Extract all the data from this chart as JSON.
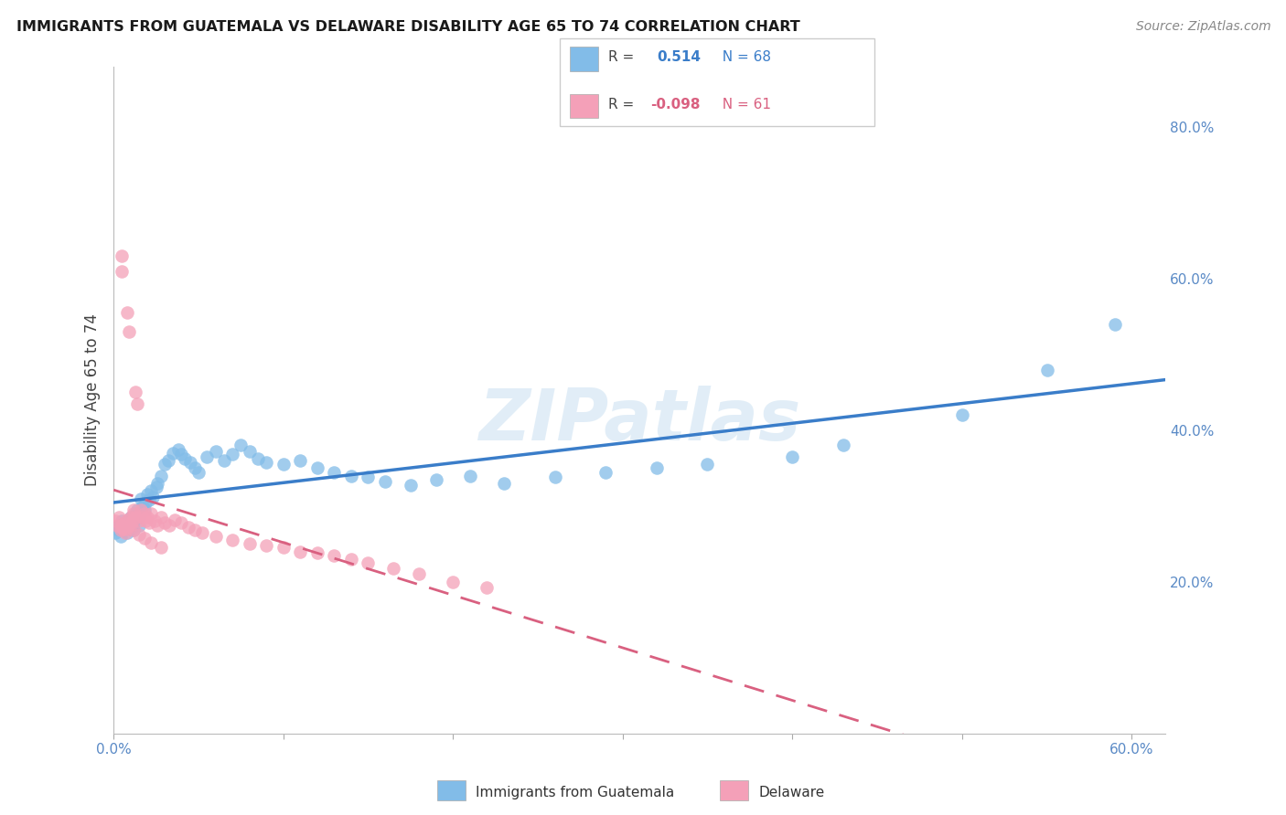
{
  "title": "IMMIGRANTS FROM GUATEMALA VS DELAWARE DISABILITY AGE 65 TO 74 CORRELATION CHART",
  "source": "Source: ZipAtlas.com",
  "ylabel": "Disability Age 65 to 74",
  "xlim": [
    0.0,
    0.62
  ],
  "ylim": [
    0.0,
    0.88
  ],
  "x_ticks": [
    0.0,
    0.1,
    0.2,
    0.3,
    0.4,
    0.5,
    0.6
  ],
  "y_ticks_right": [
    0.2,
    0.4,
    0.6,
    0.8
  ],
  "y_tick_labels_right": [
    "20.0%",
    "40.0%",
    "60.0%",
    "80.0%"
  ],
  "blue_color": "#82bce8",
  "pink_color": "#f4a0b8",
  "blue_line_color": "#3a7dc9",
  "pink_line_color": "#d96080",
  "watermark": "ZIPatlas",
  "background_color": "#ffffff",
  "grid_color": "#e0e0e0",
  "blue_scatter_x": [
    0.001,
    0.002,
    0.003,
    0.004,
    0.005,
    0.005,
    0.006,
    0.007,
    0.008,
    0.008,
    0.009,
    0.01,
    0.01,
    0.011,
    0.012,
    0.012,
    0.013,
    0.014,
    0.015,
    0.015,
    0.016,
    0.017,
    0.018,
    0.019,
    0.02,
    0.021,
    0.022,
    0.023,
    0.025,
    0.026,
    0.028,
    0.03,
    0.032,
    0.035,
    0.038,
    0.04,
    0.042,
    0.045,
    0.048,
    0.05,
    0.055,
    0.06,
    0.065,
    0.07,
    0.075,
    0.08,
    0.085,
    0.09,
    0.1,
    0.11,
    0.12,
    0.13,
    0.14,
    0.15,
    0.16,
    0.175,
    0.19,
    0.21,
    0.23,
    0.26,
    0.29,
    0.32,
    0.35,
    0.4,
    0.43,
    0.5,
    0.55,
    0.59
  ],
  "blue_scatter_y": [
    0.265,
    0.27,
    0.275,
    0.26,
    0.272,
    0.28,
    0.268,
    0.275,
    0.265,
    0.278,
    0.282,
    0.27,
    0.285,
    0.275,
    0.268,
    0.28,
    0.29,
    0.295,
    0.285,
    0.275,
    0.31,
    0.3,
    0.295,
    0.305,
    0.315,
    0.308,
    0.32,
    0.312,
    0.325,
    0.33,
    0.34,
    0.355,
    0.36,
    0.37,
    0.375,
    0.368,
    0.362,
    0.358,
    0.35,
    0.345,
    0.365,
    0.372,
    0.36,
    0.368,
    0.38,
    0.372,
    0.362,
    0.358,
    0.355,
    0.36,
    0.35,
    0.345,
    0.34,
    0.338,
    0.332,
    0.328,
    0.335,
    0.34,
    0.33,
    0.338,
    0.345,
    0.35,
    0.355,
    0.365,
    0.38,
    0.42,
    0.48,
    0.54
  ],
  "pink_scatter_x": [
    0.001,
    0.002,
    0.003,
    0.004,
    0.004,
    0.005,
    0.005,
    0.006,
    0.007,
    0.007,
    0.008,
    0.008,
    0.009,
    0.009,
    0.01,
    0.01,
    0.011,
    0.012,
    0.012,
    0.013,
    0.013,
    0.014,
    0.015,
    0.016,
    0.017,
    0.018,
    0.019,
    0.02,
    0.021,
    0.022,
    0.024,
    0.026,
    0.028,
    0.03,
    0.033,
    0.036,
    0.04,
    0.044,
    0.048,
    0.052,
    0.06,
    0.07,
    0.08,
    0.09,
    0.1,
    0.11,
    0.12,
    0.13,
    0.14,
    0.15,
    0.165,
    0.18,
    0.2,
    0.22,
    0.005,
    0.008,
    0.012,
    0.015,
    0.018,
    0.022,
    0.028
  ],
  "pink_scatter_y": [
    0.28,
    0.275,
    0.285,
    0.272,
    0.268,
    0.63,
    0.61,
    0.27,
    0.278,
    0.265,
    0.282,
    0.555,
    0.275,
    0.53,
    0.285,
    0.275,
    0.28,
    0.29,
    0.295,
    0.285,
    0.45,
    0.435,
    0.28,
    0.295,
    0.285,
    0.29,
    0.28,
    0.285,
    0.278,
    0.29,
    0.28,
    0.275,
    0.285,
    0.278,
    0.275,
    0.282,
    0.278,
    0.272,
    0.268,
    0.265,
    0.26,
    0.255,
    0.25,
    0.248,
    0.245,
    0.24,
    0.238,
    0.235,
    0.23,
    0.225,
    0.218,
    0.21,
    0.2,
    0.192,
    0.275,
    0.27,
    0.268,
    0.262,
    0.258,
    0.252,
    0.245
  ]
}
